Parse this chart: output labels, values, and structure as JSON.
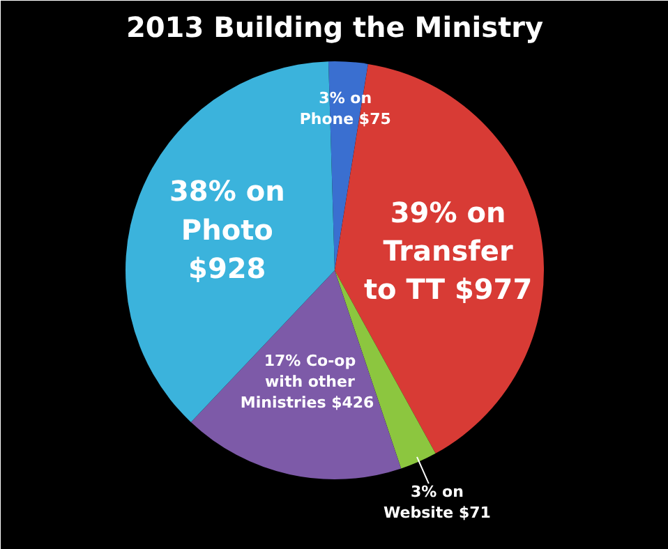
{
  "chart_data": {
    "type": "pie",
    "title": "2013 Building the Ministry",
    "categories": [
      "3% on\nPhone $75",
      "39% on\nTransfer\nto TT $977",
      "3% on\nWebsite $71",
      "17% Co-op\nwith other\nMinistries  $426",
      "38% on\nPhoto\n$928"
    ],
    "values": [
      75,
      977,
      71,
      426,
      928
    ],
    "colors": [
      "#3a6fd0",
      "#d83b35",
      "#8cc63f",
      "#7d5aa8",
      "#3bb3dc"
    ]
  }
}
